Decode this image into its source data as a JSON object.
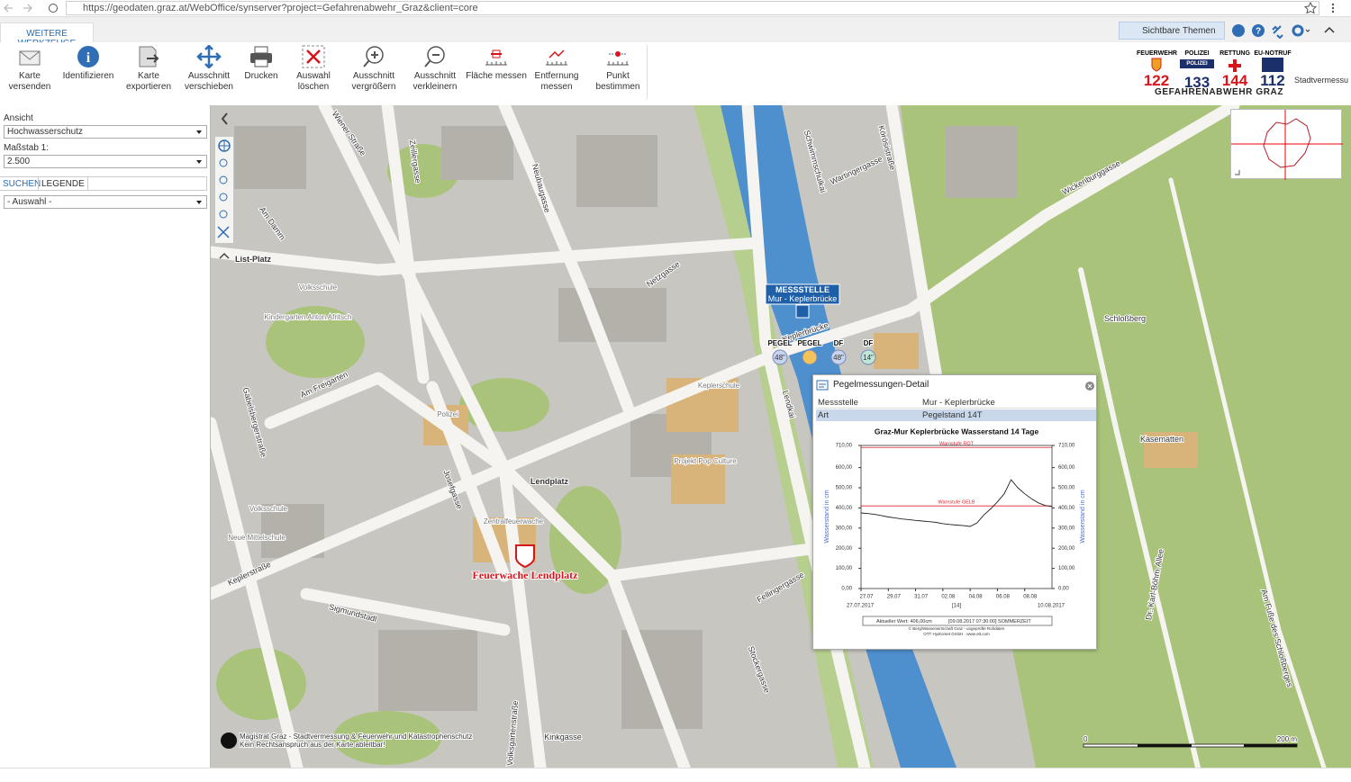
{
  "browser": {
    "url": "https://geodaten.graz.at/WebOffice/synserver?project=Gefahrenabwehr_Graz&client=core"
  },
  "toolbar": {
    "tab": "WEITERE WERKZEUGE",
    "tools": [
      "Karte versenden",
      "Identifizieren",
      "Karte exportieren",
      "Ausschnitt verschieben",
      "Drucken",
      "Auswahl löschen",
      "Ausschnitt vergrößern",
      "Ausschnitt verkleinern",
      "Fläche messen",
      "Entfernung messen",
      "Punkt bestimmen"
    ],
    "themes": "Sichtbare Themen"
  },
  "emergency": {
    "items": [
      {
        "label": "FEUERWEHR",
        "number": "122",
        "color": "#d7141a"
      },
      {
        "label": "POLIZEI",
        "number": "133",
        "color": "#1b2f6b",
        "badge": "POLIZEI"
      },
      {
        "label": "RETTUNG",
        "number": "144",
        "color": "#d7141a"
      },
      {
        "label": "EU-NOTRUF",
        "number": "112",
        "color": "#1b2f6b"
      }
    ],
    "caption": "GEFAHRENABWEHR GRAZ",
    "cut_label": "Stadtvermessu"
  },
  "sidebar": {
    "view_label": "Ansicht",
    "view": "Hochwasserschutz",
    "scale_label": "Maßstab 1:",
    "scale": "2.500",
    "tabs": [
      "SUCHEN",
      "LEGENDE"
    ],
    "selection": "- Auswahl -"
  },
  "map": {
    "streets": [
      "Wiener Straße",
      "Zeillergasse",
      "Neubaugasse",
      "Am Damm",
      "List-Platz",
      "Netzgasse",
      "Schwimmschulkai",
      "Wartingergasse",
      "Körösistraße",
      "Wickenburggasse",
      "Keplerbrücke",
      "Lendkai",
      "Am Freigarten",
      "Gabelsbergerstraße",
      "Josefgasse",
      "Lendplatz",
      "Keplerstraße",
      "Sigmundstadl",
      "Volksgartenstraße",
      "Kinkgasse",
      "Fellingergasse",
      "Stockergasse",
      "Schloßberg",
      "Kasematten",
      "Dr.-Karl-Böhm-Allee",
      "Am Fuße des Schloßberges"
    ],
    "buildings": [
      "Volksschule",
      "Kindergarten Anton Afritsch",
      "Polizei",
      "Keplerschule",
      "Projekt Pop Culture",
      "Zentralfeuerwache",
      "Volksschule",
      "Neue Mittelschule"
    ],
    "station": {
      "title": "MESSSTELLE",
      "name": "Mur - Keplerbrücke",
      "gauges": [
        {
          "label": "PEGEL",
          "reading": "48\""
        },
        {
          "label": "PEGEL"
        },
        {
          "label": "DF",
          "reading": "48\""
        },
        {
          "label": "DF",
          "reading": "14\""
        }
      ]
    },
    "fire_station": "Feuerwache Lendplatz",
    "attribution": [
      "Magistrat Graz - Stadtvermessung & Feuerwehr und Katastrophenschutz",
      "Kein Rechtsanspruch aus der Karte ableitbar!"
    ],
    "scalebar": [
      "0",
      "200 m"
    ]
  },
  "popup": {
    "title": "Pegelmessungen-Detail",
    "rows": [
      [
        "Messstelle",
        "Mur - Keplerbrücke"
      ],
      [
        "Art",
        "Pegelstand 14T"
      ]
    ]
  },
  "chart_data": {
    "type": "line",
    "title": "Graz-Mur Keplerbrücke Wasserstand 14 Tage",
    "y_label": "Wasserstand in cm",
    "y2_label": "Wasserstand in cm",
    "categories": [
      "27.07",
      null,
      null,
      null,
      "29.07",
      null,
      null,
      null,
      "31.07",
      null,
      null,
      null,
      "02.08",
      null,
      null,
      null,
      "04.08",
      null,
      null,
      null,
      "06.08",
      null,
      null,
      null,
      "08.08",
      null,
      null,
      null,
      null
    ],
    "x_start_label": "27.07.2017",
    "x_span_label": "[14]",
    "x_end_label": "10.08.2017",
    "series": [
      {
        "name": "Wasserstand",
        "color": "#222222",
        "values": [
          375,
          372,
          368,
          362,
          355,
          350,
          345,
          342,
          338,
          335,
          332,
          328,
          322,
          318,
          315,
          312,
          308,
          325,
          365,
          395,
          430,
          470,
          540,
          500,
          470,
          445,
          425,
          412,
          406
        ]
      }
    ],
    "thresholds": [
      {
        "label": "Warnstufe ROT",
        "value": 700,
        "color": "#e0202a"
      },
      {
        "label": "Warnstufe GELB",
        "value": 410,
        "color": "#e0202a"
      }
    ],
    "ylim": [
      0,
      710
    ],
    "yticks": [
      {
        "value": 0,
        "label": "0,00"
      },
      {
        "value": 100,
        "label": "100,00"
      },
      {
        "value": 200,
        "label": "200,00"
      },
      {
        "value": 300,
        "label": "300,00"
      },
      {
        "value": 400,
        "label": "400,00"
      },
      {
        "value": 500,
        "label": "500,00"
      },
      {
        "value": 600,
        "label": "600,00"
      },
      {
        "value": 710,
        "label": "710,00"
      }
    ],
    "y2lim": [
      0,
      710
    ],
    "y2ticks": [
      {
        "value": 0,
        "label": "0,00"
      },
      {
        "value": 100,
        "label": "100,00"
      },
      {
        "value": 200,
        "label": "200,00"
      },
      {
        "value": 300,
        "label": "300,00"
      },
      {
        "value": 400,
        "label": "400,00"
      },
      {
        "value": 500,
        "label": "500,00"
      },
      {
        "value": 600,
        "label": "600,00"
      },
      {
        "value": 710,
        "label": "710,00"
      }
    ],
    "current_value": "Aktueller Wert: 406,00cm",
    "timestamp": "[09.08.2017 07:30:00] SOMMERZEIT",
    "credits": [
      "© Berg/Wasserwirtschaft Graz - ungeprüfte Rohdaten",
      "OTT Hydromet GmbH · www.ott.com"
    ]
  }
}
